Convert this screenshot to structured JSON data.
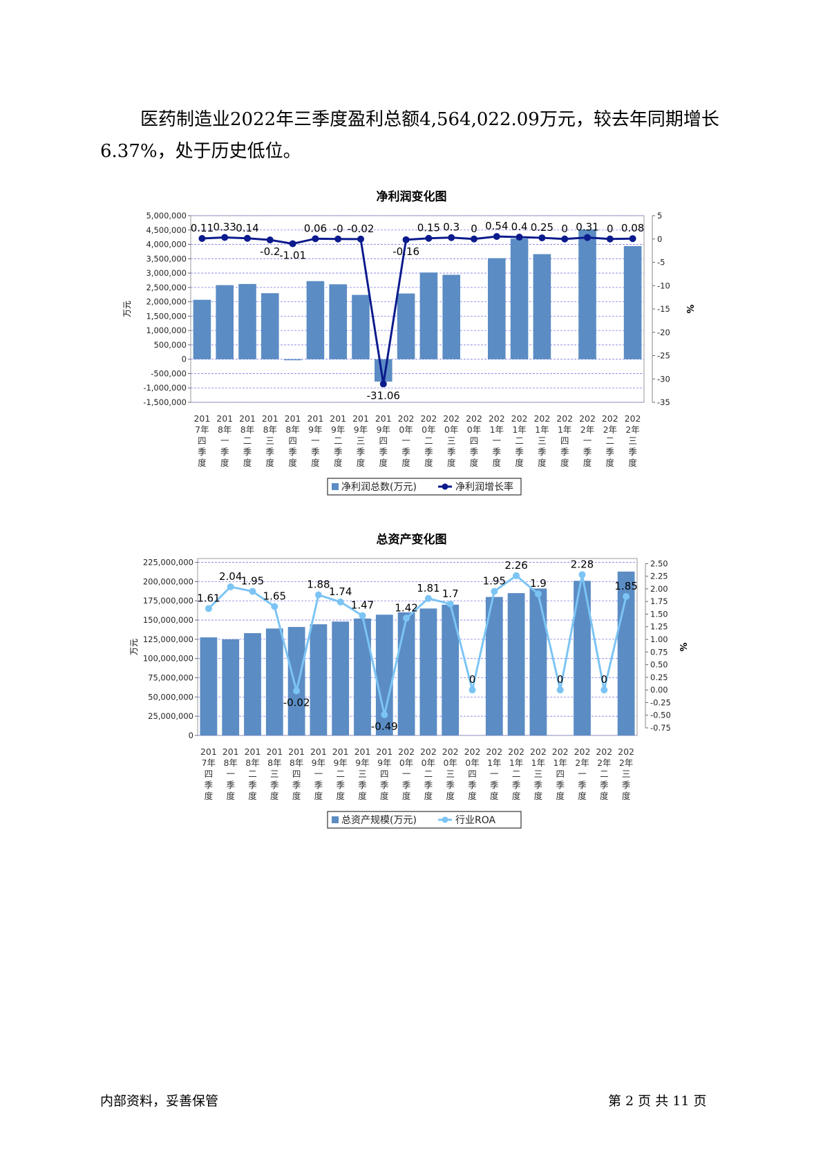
{
  "paragraph": "医药制造业2022年三季度盈利总额4,564,022.09万元，较去年同期增长6.37%，处于历史低位。",
  "footer": {
    "left": "内部资料，妥善保管",
    "right": "第 2 页   共 11 页"
  },
  "colors": {
    "bar": "#5b8cc4",
    "line1": "#0b1a8c",
    "line2": "#7cc4f4",
    "grid": "#7a7ae6"
  },
  "chart_data": [
    {
      "type": "bar+line",
      "title": "净利润变化图",
      "ylabel": "万元",
      "y2label": "%",
      "ylim": [
        -1500000,
        5000000
      ],
      "y2lim": [
        -35,
        5
      ],
      "categories": [
        "2017年四季度",
        "2018年一季度",
        "2018年二季度",
        "2018年三季度",
        "2018年四季度",
        "2019年一季度",
        "2019年二季度",
        "2019年三季度",
        "2019年四季度",
        "2020年一季度",
        "2020年二季度",
        "2020年三季度",
        "2020年四季度",
        "2021年一季度",
        "2021年二季度",
        "2021年三季度",
        "2021年四季度",
        "2022年一季度",
        "2022年二季度",
        "2022年三季度"
      ],
      "ytick_labels": [
        "5,000,000",
        "4,500,000",
        "4,000,000",
        "3,500,000",
        "3,000,000",
        "2,500,000",
        "2,000,000",
        "1,500,000",
        "1,000,000",
        "500,000",
        "0",
        "-500,000",
        "-1,000,000",
        "-1,500,000"
      ],
      "y2tick_labels": [
        "5",
        "0",
        "-5",
        "-10",
        "-15",
        "-20",
        "-25",
        "-30",
        "-35"
      ],
      "series": [
        {
          "name": "净利润总数(万元)",
          "kind": "bar",
          "values": [
            2070000,
            2580000,
            2620000,
            2300000,
            -30000,
            2720000,
            2610000,
            2240000,
            -780000,
            2290000,
            3020000,
            2940000,
            0,
            3520000,
            4200000,
            3660000,
            0,
            4520000,
            0,
            3940000
          ]
        },
        {
          "name": "净利润增长率",
          "kind": "line",
          "values": [
            0.11,
            0.33,
            0.14,
            -0.2,
            -1.01,
            0.06,
            0,
            -0.02,
            -31.06,
            -0.16,
            0.15,
            0.3,
            0,
            0.54,
            0.4,
            0.25,
            0,
            0.31,
            0,
            0.08
          ],
          "labels": [
            "0.11",
            "0.33",
            "0.14",
            "-0.2",
            "-1.01",
            "0.06",
            "-0",
            "-0.02",
            "-31.06",
            "-0.16",
            "0.15",
            "0.3",
            "0",
            "0.54",
            "0.4",
            "0.25",
            "0",
            "0.31",
            "0",
            "0.08"
          ]
        }
      ],
      "legend": "bottom"
    },
    {
      "type": "bar+line",
      "title": "总资产变化图",
      "ylabel": "万元",
      "y2label": "%",
      "ylim": [
        0,
        230000000
      ],
      "y2lim": [
        -0.9,
        2.6
      ],
      "categories": [
        "2017年四季度",
        "2018年一季度",
        "2018年二季度",
        "2018年三季度",
        "2018年四季度",
        "2019年一季度",
        "2019年二季度",
        "2019年三季度",
        "2019年四季度",
        "2020年一季度",
        "2020年二季度",
        "2020年三季度",
        "2020年四季度",
        "2021年一季度",
        "2021年二季度",
        "2021年三季度",
        "2021年四季度",
        "2022年一季度",
        "2022年二季度",
        "2022年三季度"
      ],
      "ytick_labels": [
        "225,000,000",
        "200,000,000",
        "175,000,000",
        "150,000,000",
        "125,000,000",
        "100,000,000",
        "75,000,000",
        "50,000,000",
        "25,000,000",
        "0"
      ],
      "y2tick_labels": [
        "2.50",
        "2.25",
        "2.00",
        "1.75",
        "1.50",
        "1.25",
        "1.00",
        "0.75",
        "0.50",
        "0.25",
        "0.00",
        "-0.25",
        "-0.50",
        "-0.75"
      ],
      "series": [
        {
          "name": "总资产规模(万元)",
          "kind": "bar",
          "values": [
            127500000,
            125000000,
            133000000,
            139000000,
            141000000,
            144500000,
            148000000,
            152000000,
            157000000,
            160000000,
            165000000,
            170000000,
            0,
            180000000,
            185000000,
            191000000,
            0,
            201000000,
            0,
            213000000
          ]
        },
        {
          "name": "行业ROA",
          "kind": "line",
          "values": [
            1.61,
            2.04,
            1.95,
            1.65,
            -0.02,
            1.88,
            1.74,
            1.47,
            -0.49,
            1.42,
            1.81,
            1.7,
            0,
            1.95,
            2.26,
            1.9,
            0,
            2.28,
            0,
            1.85
          ],
          "labels": [
            "1.61",
            "2.04",
            "1.95",
            "1.65",
            "-0.02",
            "1.88",
            "1.74",
            "1.47",
            "-0.49",
            "1.42",
            "1.81",
            "1.7",
            "0",
            "1.95",
            "2.26",
            "1.9",
            "0",
            "2.28",
            "0",
            "1.85"
          ]
        }
      ],
      "legend": "bottom"
    }
  ]
}
